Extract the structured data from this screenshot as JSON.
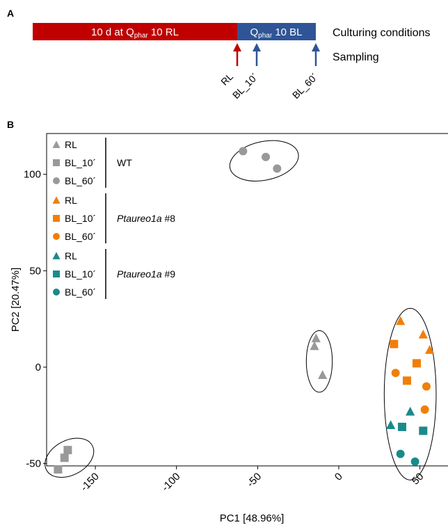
{
  "panel_a": {
    "letter": "A",
    "bar_red_text": "10 d at Q",
    "bar_red_sub": "phar",
    "bar_red_tail": " 10 RL",
    "bar_blue_text": "Q",
    "bar_blue_sub": "phar",
    "bar_blue_tail": " 10 BL",
    "culturing_label": "Culturing conditions",
    "sampling_label": "Sampling",
    "sample_labels": [
      "RL",
      "BL_10´",
      "BL_60´"
    ],
    "colors": {
      "red": "#c00000",
      "blue": "#2f5597"
    }
  },
  "panel_b": {
    "letter": "B"
  },
  "chart_data": {
    "type": "scatter",
    "xlabel": "PC1 [48.96%]",
    "ylabel": "PC2 [20.47%]",
    "xlim": [
      -185,
      60
    ],
    "ylim": [
      -60,
      120
    ],
    "xticks": [
      -150,
      -100,
      -50,
      0,
      50
    ],
    "yticks": [
      -50,
      0,
      50,
      100
    ],
    "colors": {
      "WT": "#999999",
      "Ptaureo1a #8": "#f07f09",
      "Ptaureo1a #9": "#1b8a8a"
    },
    "legend": {
      "position": "top-left",
      "groups": [
        {
          "name": "WT",
          "name_italic": "",
          "entries": [
            "RL",
            "BL_10´",
            "BL_60´"
          ]
        },
        {
          "name": " #8",
          "name_italic": "Ptaureo1a",
          "entries": [
            "RL",
            "BL_10´",
            "BL_60´"
          ]
        },
        {
          "name": " #9",
          "name_italic": "Ptaureo1a",
          "entries": [
            "RL",
            "BL_10´",
            "BL_60´"
          ]
        }
      ]
    },
    "series": [
      {
        "name": "WT RL",
        "group": "WT",
        "shape": "triangle",
        "points": [
          [
            -14,
            15
          ],
          [
            -15,
            11
          ],
          [
            -10,
            -4
          ]
        ]
      },
      {
        "name": "WT BL_10´",
        "group": "WT",
        "shape": "square",
        "points": [
          [
            -167,
            -43
          ],
          [
            -169,
            -47
          ],
          [
            -173,
            -53
          ]
        ]
      },
      {
        "name": "WT BL_60´",
        "group": "WT",
        "shape": "circle",
        "points": [
          [
            -59,
            112
          ],
          [
            -45,
            109
          ],
          [
            -38,
            103
          ]
        ]
      },
      {
        "name": "Ptaureo1a #8 RL",
        "group": "Ptaureo1a #8",
        "shape": "triangle",
        "points": [
          [
            38,
            24
          ],
          [
            52,
            17
          ],
          [
            56,
            9
          ]
        ]
      },
      {
        "name": "Ptaureo1a #8 BL_10´",
        "group": "Ptaureo1a #8",
        "shape": "square",
        "points": [
          [
            34,
            12
          ],
          [
            48,
            2
          ],
          [
            42,
            -7
          ]
        ]
      },
      {
        "name": "Ptaureo1a #8 BL_60´",
        "group": "Ptaureo1a #8",
        "shape": "circle",
        "points": [
          [
            35,
            -3
          ],
          [
            54,
            -10
          ],
          [
            53,
            -22
          ]
        ]
      },
      {
        "name": "Ptaureo1a #9 RL",
        "group": "Ptaureo1a #9",
        "shape": "triangle",
        "points": [
          [
            44,
            -23
          ],
          [
            32,
            -30
          ]
        ]
      },
      {
        "name": "Ptaureo1a #9 BL_10´",
        "group": "Ptaureo1a #9",
        "shape": "square",
        "points": [
          [
            39,
            -31
          ],
          [
            52,
            -33
          ]
        ]
      },
      {
        "name": "Ptaureo1a #9 BL_60´",
        "group": "Ptaureo1a #9",
        "shape": "circle",
        "points": [
          [
            38,
            -45
          ],
          [
            47,
            -49
          ]
        ]
      }
    ],
    "ellipses": [
      {
        "cx": -46,
        "cy": 107,
        "rx": 21.5,
        "ry": 10,
        "angle": -12
      },
      {
        "cx": -12,
        "cy": 3,
        "rx": 8,
        "ry": 16,
        "angle": 0
      },
      {
        "cx": -166,
        "cy": -47,
        "rx": 16,
        "ry": 9,
        "angle": -28
      },
      {
        "cx": 44,
        "cy": -14,
        "rx": 16,
        "ry": 44.5,
        "angle": 0
      }
    ]
  }
}
